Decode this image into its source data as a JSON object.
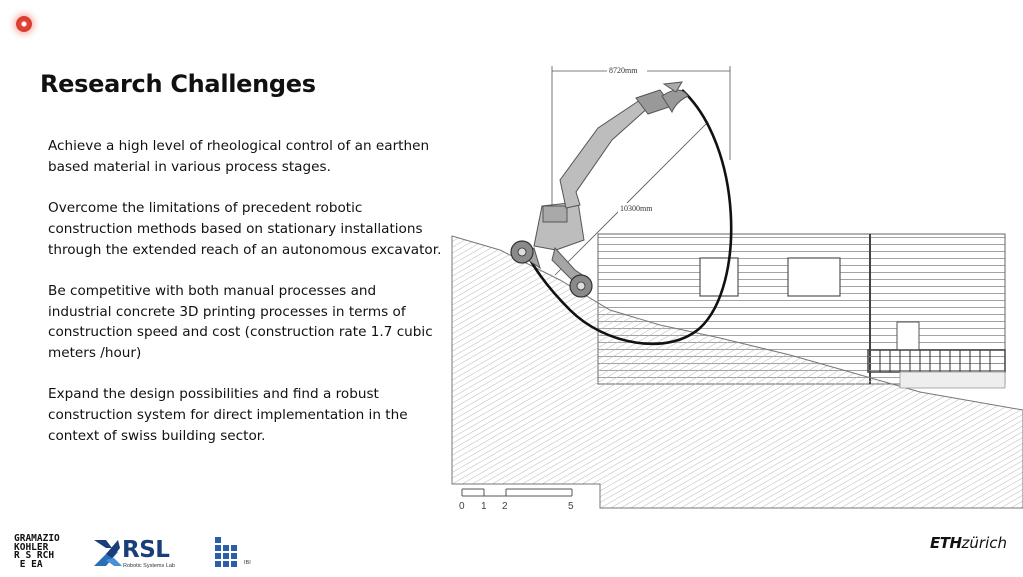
{
  "recording_indicator": {
    "color": "#e8473a"
  },
  "slide": {
    "title": "Research Challenges",
    "paragraphs": [
      "Achieve a high level of rheological control of an earthen based material in various process stages.",
      "Overcome the limitations of precedent robotic construction methods based on stationary installations through the extended reach of an autonomous excavator.",
      "Be competitive with both manual processes and industrial concrete 3D printing processes in terms of construction speed and cost (construction rate 1.7 cubic meters /hour)",
      "Expand the design possibilities and find a robust construction system for direct implementation in the context of swiss building sector."
    ]
  },
  "figure": {
    "width_dimension": "8720mm",
    "reach_dimension": "10300mm",
    "scale_labels": [
      "0",
      "1",
      "2",
      "5"
    ]
  },
  "footer": {
    "gk_logo_lines": [
      "GRAMAZIO",
      "KOHLER",
      "R S RCH",
      " E EA"
    ],
    "rsl_logo": "RSL",
    "rsl_sub": "Robotic Systems Lab",
    "ibi_label": "IBI",
    "eth_bold": "ETH",
    "eth_italic": "zürich"
  }
}
